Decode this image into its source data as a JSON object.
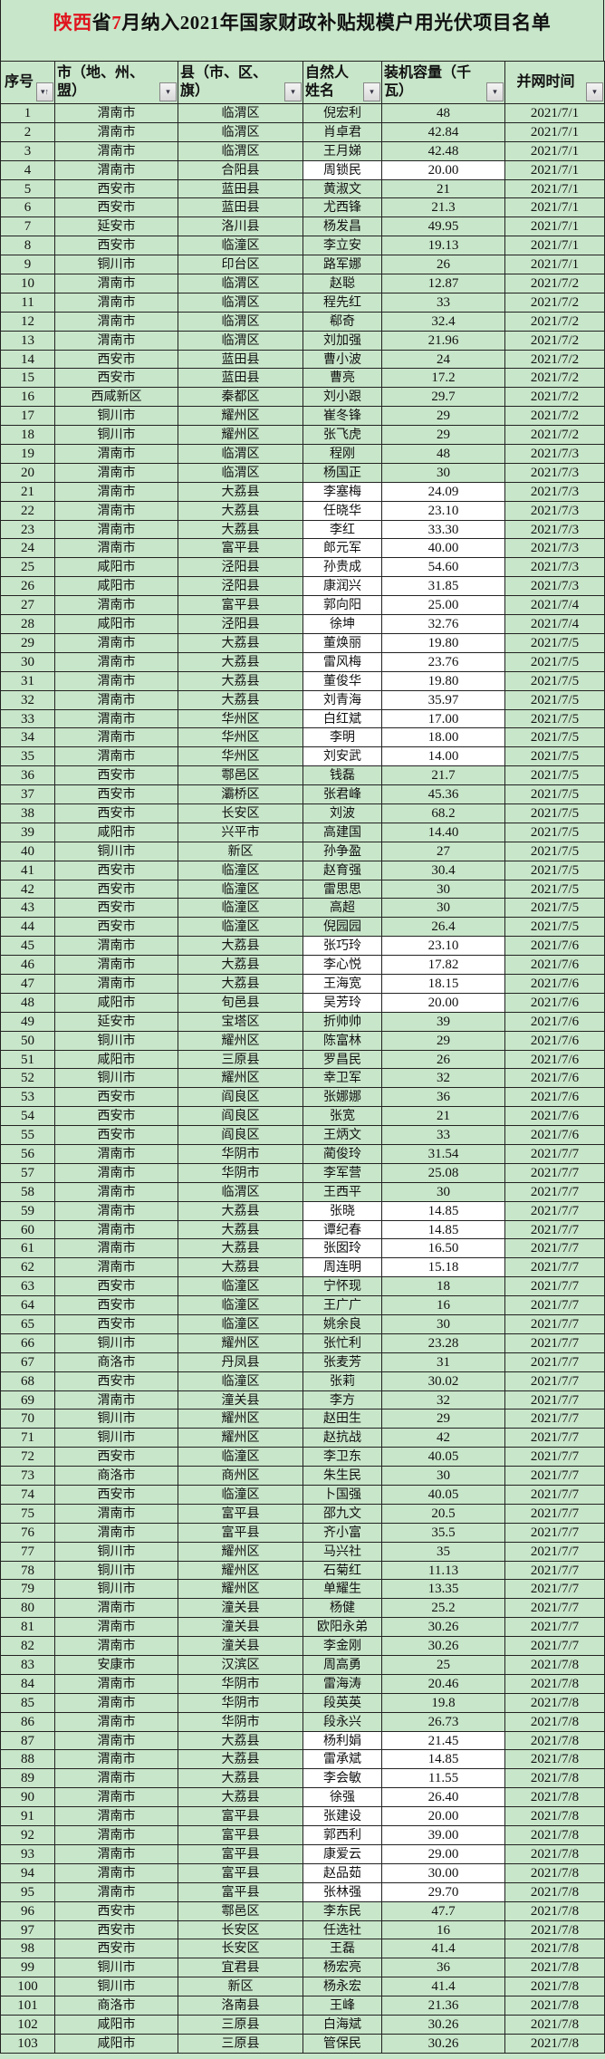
{
  "title": {
    "part1": "陕西",
    "part2": "省",
    "part3": "7",
    "part4": "月纳入2021年国家财政补贴规模户用光伏项目名单"
  },
  "colors": {
    "background": "#c8e6c9",
    "title_accent": "#e0141e",
    "highlight_cell": "#ffffff"
  },
  "headers": [
    "序号",
    "市（地、州、盟）",
    "县（市、区、旗）",
    "自然人姓名",
    "装机容量（千瓦）",
    "并网时间"
  ],
  "filter_icon": "dropdown-filter-icon",
  "sort_icon": "sort-ascending-icon",
  "rows": [
    [
      "1",
      "渭南市",
      "临渭区",
      "倪宏利",
      "48",
      "2021/7/1"
    ],
    [
      "2",
      "渭南市",
      "临渭区",
      "肖卓君",
      "42.84",
      "2021/7/1"
    ],
    [
      "3",
      "渭南市",
      "临渭区",
      "王月娣",
      "42.48",
      "2021/7/1"
    ],
    [
      "4",
      "渭南市",
      "合阳县",
      "周锁民",
      "20.00",
      "2021/7/1"
    ],
    [
      "5",
      "西安市",
      "蓝田县",
      "黄淑文",
      "21",
      "2021/7/1"
    ],
    [
      "6",
      "西安市",
      "蓝田县",
      "尤西锋",
      "21.3",
      "2021/7/1"
    ],
    [
      "7",
      "延安市",
      "洛川县",
      "杨发昌",
      "49.95",
      "2021/7/1"
    ],
    [
      "8",
      "西安市",
      "临潼区",
      "李立安",
      "19.13",
      "2021/7/1"
    ],
    [
      "9",
      "铜川市",
      "印台区",
      "路军娜",
      "26",
      "2021/7/1"
    ],
    [
      "10",
      "渭南市",
      "临渭区",
      "赵聪",
      "12.87",
      "2021/7/2"
    ],
    [
      "11",
      "渭南市",
      "临渭区",
      "程先红",
      "33",
      "2021/7/2"
    ],
    [
      "12",
      "渭南市",
      "临渭区",
      "郗奇",
      "32.4",
      "2021/7/2"
    ],
    [
      "13",
      "渭南市",
      "临渭区",
      "刘加强",
      "21.96",
      "2021/7/2"
    ],
    [
      "14",
      "西安市",
      "蓝田县",
      "曹小波",
      "24",
      "2021/7/2"
    ],
    [
      "15",
      "西安市",
      "蓝田县",
      "曹亮",
      "17.2",
      "2021/7/2"
    ],
    [
      "16",
      "西咸新区",
      "秦都区",
      "刘小跟",
      "29.7",
      "2021/7/2"
    ],
    [
      "17",
      "铜川市",
      "耀州区",
      "崔冬锋",
      "29",
      "2021/7/2"
    ],
    [
      "18",
      "铜川市",
      "耀州区",
      "张飞虎",
      "29",
      "2021/7/2"
    ],
    [
      "19",
      "渭南市",
      "临渭区",
      "程刚",
      "48",
      "2021/7/3"
    ],
    [
      "20",
      "渭南市",
      "临渭区",
      "杨国正",
      "30",
      "2021/7/3"
    ],
    [
      "21",
      "渭南市",
      "大荔县",
      "李塞梅",
      "24.09",
      "2021/7/3"
    ],
    [
      "22",
      "渭南市",
      "大荔县",
      "任晓华",
      "23.10",
      "2021/7/3"
    ],
    [
      "23",
      "渭南市",
      "大荔县",
      "李红",
      "33.30",
      "2021/7/3"
    ],
    [
      "24",
      "渭南市",
      "富平县",
      "郎元军",
      "40.00",
      "2021/7/3"
    ],
    [
      "25",
      "咸阳市",
      "泾阳县",
      "孙贵成",
      "54.60",
      "2021/7/3"
    ],
    [
      "26",
      "咸阳市",
      "泾阳县",
      "康润兴",
      "31.85",
      "2021/7/3"
    ],
    [
      "27",
      "渭南市",
      "富平县",
      "郭向阳",
      "25.00",
      "2021/7/4"
    ],
    [
      "28",
      "咸阳市",
      "泾阳县",
      "徐坤",
      "32.76",
      "2021/7/4"
    ],
    [
      "29",
      "渭南市",
      "大荔县",
      "董焕丽",
      "19.80",
      "2021/7/5"
    ],
    [
      "30",
      "渭南市",
      "大荔县",
      "雷风梅",
      "23.76",
      "2021/7/5"
    ],
    [
      "31",
      "渭南市",
      "大荔县",
      "董俊华",
      "19.80",
      "2021/7/5"
    ],
    [
      "32",
      "渭南市",
      "大荔县",
      "刘青海",
      "35.97",
      "2021/7/5"
    ],
    [
      "33",
      "渭南市",
      "华州区",
      "白红斌",
      "17.00",
      "2021/7/5"
    ],
    [
      "34",
      "渭南市",
      "华州区",
      "李明",
      "18.00",
      "2021/7/5"
    ],
    [
      "35",
      "渭南市",
      "华州区",
      "刘安武",
      "14.00",
      "2021/7/5"
    ],
    [
      "36",
      "西安市",
      "鄠邑区",
      "钱磊",
      "21.7",
      "2021/7/5"
    ],
    [
      "37",
      "西安市",
      "灞桥区",
      "张君峰",
      "45.36",
      "2021/7/5"
    ],
    [
      "38",
      "西安市",
      "长安区",
      "刘波",
      "68.2",
      "2021/7/5"
    ],
    [
      "39",
      "咸阳市",
      "兴平市",
      "高建国",
      "14.40",
      "2021/7/5"
    ],
    [
      "40",
      "铜川市",
      "新区",
      "孙争盈",
      "27",
      "2021/7/5"
    ],
    [
      "41",
      "西安市",
      "临潼区",
      "赵育强",
      "30.4",
      "2021/7/5"
    ],
    [
      "42",
      "西安市",
      "临潼区",
      "雷思思",
      "30",
      "2021/7/5"
    ],
    [
      "43",
      "西安市",
      "临潼区",
      "高超",
      "30",
      "2021/7/5"
    ],
    [
      "44",
      "西安市",
      "临潼区",
      "倪园园",
      "26.4",
      "2021/7/5"
    ],
    [
      "45",
      "渭南市",
      "大荔县",
      "张巧玲",
      "23.10",
      "2021/7/6"
    ],
    [
      "46",
      "渭南市",
      "大荔县",
      "李心悦",
      "17.82",
      "2021/7/6"
    ],
    [
      "47",
      "渭南市",
      "大荔县",
      "王海宽",
      "18.15",
      "2021/7/6"
    ],
    [
      "48",
      "咸阳市",
      "旬邑县",
      "吴芳玲",
      "20.00",
      "2021/7/6"
    ],
    [
      "49",
      "延安市",
      "宝塔区",
      "折帅帅",
      "39",
      "2021/7/6"
    ],
    [
      "50",
      "铜川市",
      "耀州区",
      "陈富林",
      "29",
      "2021/7/6"
    ],
    [
      "51",
      "咸阳市",
      "三原县",
      "罗昌民",
      "26",
      "2021/7/6"
    ],
    [
      "52",
      "铜川市",
      "耀州区",
      "幸卫军",
      "32",
      "2021/7/6"
    ],
    [
      "53",
      "西安市",
      "阎良区",
      "张娜娜",
      "36",
      "2021/7/6"
    ],
    [
      "54",
      "西安市",
      "阎良区",
      "张宽",
      "21",
      "2021/7/6"
    ],
    [
      "55",
      "西安市",
      "阎良区",
      "王炳文",
      "33",
      "2021/7/6"
    ],
    [
      "56",
      "渭南市",
      "华阴市",
      "蔺俊玲",
      "31.54",
      "2021/7/7"
    ],
    [
      "57",
      "渭南市",
      "华阴市",
      "李军营",
      "25.08",
      "2021/7/7"
    ],
    [
      "58",
      "渭南市",
      "临渭区",
      "王西平",
      "30",
      "2021/7/7"
    ],
    [
      "59",
      "渭南市",
      "大荔县",
      "张晓",
      "14.85",
      "2021/7/7"
    ],
    [
      "60",
      "渭南市",
      "大荔县",
      "谭纪春",
      "14.85",
      "2021/7/7"
    ],
    [
      "61",
      "渭南市",
      "大荔县",
      "张囡玲",
      "16.50",
      "2021/7/7"
    ],
    [
      "62",
      "渭南市",
      "大荔县",
      "周连明",
      "15.18",
      "2021/7/7"
    ],
    [
      "63",
      "西安市",
      "临潼区",
      "宁怀现",
      "18",
      "2021/7/7"
    ],
    [
      "64",
      "西安市",
      "临潼区",
      "王广广",
      "16",
      "2021/7/7"
    ],
    [
      "65",
      "西安市",
      "临潼区",
      "姚余良",
      "30",
      "2021/7/7"
    ],
    [
      "66",
      "铜川市",
      "耀州区",
      "张忙利",
      "23.28",
      "2021/7/7"
    ],
    [
      "67",
      "商洛市",
      "丹凤县",
      "张麦芳",
      "31",
      "2021/7/7"
    ],
    [
      "68",
      "西安市",
      "临潼区",
      "张莉",
      "30.02",
      "2021/7/7"
    ],
    [
      "69",
      "渭南市",
      "潼关县",
      "李方",
      "32",
      "2021/7/7"
    ],
    [
      "70",
      "铜川市",
      "耀州区",
      "赵田生",
      "29",
      "2021/7/7"
    ],
    [
      "71",
      "铜川市",
      "耀州区",
      "赵抗战",
      "42",
      "2021/7/7"
    ],
    [
      "72",
      "西安市",
      "临潼区",
      "李卫东",
      "40.05",
      "2021/7/7"
    ],
    [
      "73",
      "商洛市",
      "商州区",
      "朱生民",
      "30",
      "2021/7/7"
    ],
    [
      "74",
      "西安市",
      "临潼区",
      "卜国强",
      "40.05",
      "2021/7/7"
    ],
    [
      "75",
      "渭南市",
      "富平县",
      "邵九文",
      "20.5",
      "2021/7/7"
    ],
    [
      "76",
      "渭南市",
      "富平县",
      "齐小富",
      "35.5",
      "2021/7/7"
    ],
    [
      "77",
      "铜川市",
      "耀州区",
      "马兴社",
      "35",
      "2021/7/7"
    ],
    [
      "78",
      "铜川市",
      "耀州区",
      "石菊红",
      "11.13",
      "2021/7/7"
    ],
    [
      "79",
      "铜川市",
      "耀州区",
      "单耀生",
      "13.35",
      "2021/7/7"
    ],
    [
      "80",
      "渭南市",
      "潼关县",
      "杨健",
      "25.2",
      "2021/7/7"
    ],
    [
      "81",
      "渭南市",
      "潼关县",
      "欧阳永弟",
      "30.26",
      "2021/7/7"
    ],
    [
      "82",
      "渭南市",
      "潼关县",
      "李金刚",
      "30.26",
      "2021/7/7"
    ],
    [
      "83",
      "安康市",
      "汉滨区",
      "周高勇",
      "25",
      "2021/7/8"
    ],
    [
      "84",
      "渭南市",
      "华阴市",
      "雷海涛",
      "20.46",
      "2021/7/8"
    ],
    [
      "85",
      "渭南市",
      "华阴市",
      "段英英",
      "19.8",
      "2021/7/8"
    ],
    [
      "86",
      "渭南市",
      "华阴市",
      "段永兴",
      "26.73",
      "2021/7/8"
    ],
    [
      "87",
      "渭南市",
      "大荔县",
      "杨利娟",
      "21.45",
      "2021/7/8"
    ],
    [
      "88",
      "渭南市",
      "大荔县",
      "雷承斌",
      "14.85",
      "2021/7/8"
    ],
    [
      "89",
      "渭南市",
      "大荔县",
      "李会敏",
      "11.55",
      "2021/7/8"
    ],
    [
      "90",
      "渭南市",
      "大荔县",
      "徐强",
      "26.40",
      "2021/7/8"
    ],
    [
      "91",
      "渭南市",
      "富平县",
      "张建设",
      "20.00",
      "2021/7/8"
    ],
    [
      "92",
      "渭南市",
      "富平县",
      "郭西利",
      "39.00",
      "2021/7/8"
    ],
    [
      "93",
      "渭南市",
      "富平县",
      "康爱云",
      "29.00",
      "2021/7/8"
    ],
    [
      "94",
      "渭南市",
      "富平县",
      "赵品茹",
      "30.00",
      "2021/7/8"
    ],
    [
      "95",
      "渭南市",
      "富平县",
      "张林强",
      "29.70",
      "2021/7/8"
    ],
    [
      "96",
      "西安市",
      "鄠邑区",
      "李东民",
      "47.7",
      "2021/7/8"
    ],
    [
      "97",
      "西安市",
      "长安区",
      "任选社",
      "16",
      "2021/7/8"
    ],
    [
      "98",
      "西安市",
      "长安区",
      "王磊",
      "41.4",
      "2021/7/8"
    ],
    [
      "99",
      "铜川市",
      "宜君县",
      "杨宏亮",
      "36",
      "2021/7/8"
    ],
    [
      "100",
      "铜川市",
      "新区",
      "杨永宏",
      "41.4",
      "2021/7/8"
    ],
    [
      "101",
      "商洛市",
      "洛南县",
      "王峰",
      "21.36",
      "2021/7/8"
    ],
    [
      "102",
      "咸阳市",
      "三原县",
      "白海斌",
      "30.26",
      "2021/7/8"
    ],
    [
      "103",
      "咸阳市",
      "三原县",
      "管保民",
      "30.26",
      "2021/7/8"
    ]
  ]
}
